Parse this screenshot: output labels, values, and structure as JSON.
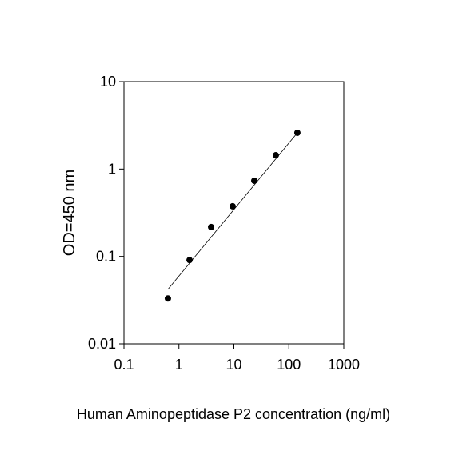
{
  "chart_data": {
    "type": "scatter",
    "x_label": "Human Aminopeptidase P2 concentration (ng/ml)",
    "y_label": "OD=450 nm",
    "x": [
      0.63,
      1.56,
      3.85,
      9.5,
      23.5,
      58,
      143
    ],
    "values": [
      0.033,
      0.091,
      0.217,
      0.375,
      0.735,
      1.44,
      2.6
    ],
    "color": "#000000",
    "fit_line": {
      "x": [
        0.63,
        143
      ],
      "y": [
        0.042,
        2.6
      ]
    },
    "xlim": [
      0.1,
      1000
    ],
    "ylim": [
      0.01,
      10
    ],
    "xticks": [
      0.1,
      1,
      10,
      100,
      1000
    ],
    "yticks": [
      0.01,
      0.1,
      1,
      10
    ],
    "xlog": true,
    "ylog": true
  }
}
